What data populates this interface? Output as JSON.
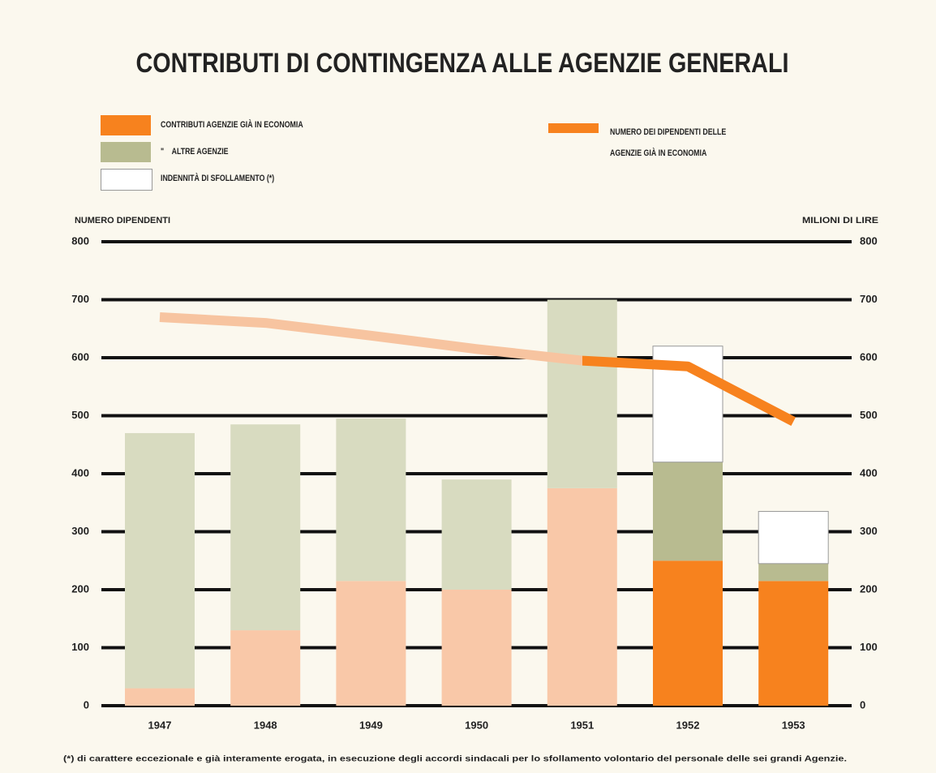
{
  "chart_data": {
    "type": "bar",
    "title": "CONTRIBUTI DI CONTINGENZA ALLE AGENZIE GENERALI",
    "y_label": "NUMERO DIPENDENTI",
    "y2_label": "MILIONI DI LIRE",
    "categories": [
      "1947",
      "1948",
      "1949",
      "1950",
      "1951",
      "1952",
      "1953"
    ],
    "series": [
      {
        "name": "CONTRIBUTI AGENZIE GIÀ IN ECONOMIA",
        "type": "bar",
        "axis": "y2",
        "color": "#f7821e",
        "colors": [
          "#f9c8a8",
          "#f9c8a8",
          "#f9c8a8",
          "#f9c8a8",
          "#f9c8a8",
          "#f7821e",
          "#f7821e"
        ],
        "values": [
          30,
          130,
          215,
          200,
          375,
          250,
          215
        ]
      },
      {
        "name": "\"    ALTRE AGENZIE",
        "type": "bar",
        "axis": "y2",
        "color": "#b8bb90",
        "colors": [
          "#d8dbc0",
          "#d8dbc0",
          "#d8dbc0",
          "#d8dbc0",
          "#d8dbc0",
          "#b8bb90",
          "#b8bb90"
        ],
        "values": [
          440,
          355,
          280,
          190,
          325,
          170,
          30
        ]
      },
      {
        "name": "INDENNITÀ DI SFOLLAMENTO (*)",
        "type": "bar",
        "axis": "y2",
        "color": "#ffffff",
        "colors": [
          "#ffffff",
          "#ffffff",
          "#ffffff",
          "#ffffff",
          "#ffffff",
          "#ffffff",
          "#ffffff"
        ],
        "values": [
          null,
          null,
          null,
          null,
          null,
          200,
          90
        ]
      },
      {
        "name": "NUMERO DEI DIPENDENTI DELLE AGENZIE GIÀ IN ECONOMIA",
        "type": "line",
        "axis": "y",
        "color": "#f7821e",
        "colors": [
          "#f7c4a0",
          "#f7c4a0",
          "#f7c4a0",
          "#f7c4a0",
          "#f7821e",
          "#f7821e",
          "#f7821e"
        ],
        "values": [
          670,
          660,
          638,
          615,
          595,
          585,
          490
        ]
      }
    ],
    "ylim": [
      0,
      800
    ],
    "yticks": [
      0,
      100,
      200,
      300,
      400,
      500,
      600,
      700,
      800
    ],
    "y2lim": [
      0,
      800
    ],
    "y2ticks": [
      0,
      100,
      200,
      300,
      400,
      500,
      600,
      700,
      800
    ],
    "grid": true,
    "footnote": "(*) di carattere eccezionale e già interamente erogata, in esecuzione degli accordi sindacali per lo sfollamento volontario del personale delle sei grandi Agenzie."
  }
}
